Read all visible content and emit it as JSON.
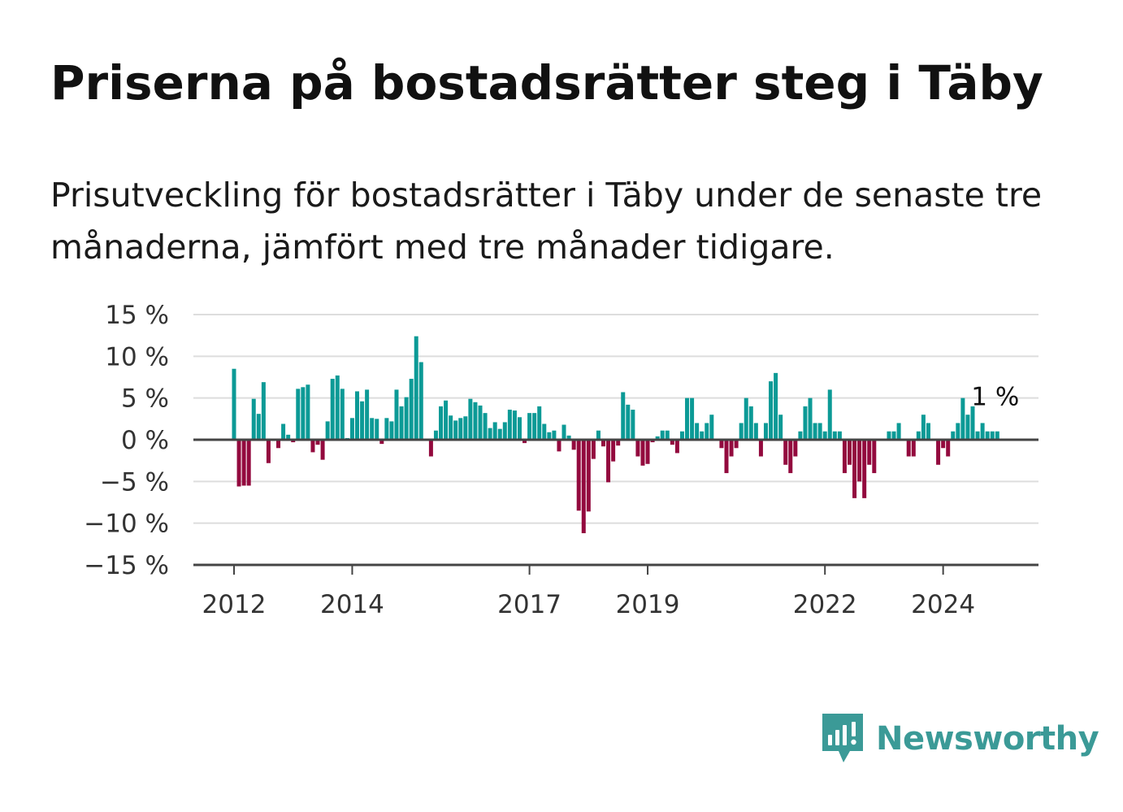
{
  "title": "Priserna på bostadsrätter steg i Täby",
  "subtitle": "Prisutveckling för bostadsrätter i Täby under de senaste tre månaderna, jämfört med tre månader tidigare.",
  "brand": {
    "name": "Newsworthy",
    "icon": "newsworthy-logo-icon"
  },
  "colors": {
    "positive": "#0c9a96",
    "negative": "#930a3e",
    "grid": "#dddddd",
    "axis": "#444444",
    "brand": "#3b9a97"
  },
  "chart_data": {
    "type": "bar",
    "ylim": [
      -15,
      15
    ],
    "yticks": [
      15,
      10,
      5,
      0,
      -5,
      -10,
      -15
    ],
    "ytick_labels": [
      "15 %",
      "10 %",
      "5 %",
      "0 %",
      "−5 %",
      "−10 %",
      "−15 %"
    ],
    "xticks": [
      {
        "label": "2012",
        "index": 0
      },
      {
        "label": "2014",
        "index": 24
      },
      {
        "label": "2017",
        "index": 60
      },
      {
        "label": "2019",
        "index": 84
      },
      {
        "label": "2022",
        "index": 120
      },
      {
        "label": "2024",
        "index": 144
      }
    ],
    "last_label": "1 %",
    "grid": true,
    "values": [
      8.5,
      -5.6,
      -5.5,
      -5.5,
      4.9,
      3.1,
      6.9,
      -2.8,
      0,
      -1,
      1.9,
      0.6,
      -0.3,
      6.1,
      6.3,
      6.6,
      -1.5,
      -0.6,
      -2.4,
      2.2,
      7.3,
      7.7,
      6.1,
      0.2,
      2.6,
      5.8,
      4.6,
      6.0,
      2.6,
      2.5,
      -0.5,
      2.6,
      2.2,
      6.0,
      4.0,
      5.1,
      7.3,
      12.4,
      9.3,
      0,
      -2,
      1.1,
      4.0,
      4.7,
      2.9,
      2.3,
      2.6,
      2.8,
      4.9,
      4.5,
      4.1,
      3.2,
      1.4,
      2.1,
      1.3,
      2.1,
      3.6,
      3.5,
      2.7,
      -0.4,
      3.2,
      3.2,
      4.0,
      1.9,
      0.9,
      1.1,
      -1.4,
      1.8,
      0.5,
      -1.2,
      -8.5,
      -11.2,
      -8.6,
      -2.3,
      1.1,
      -0.8,
      -5.1,
      -2.6,
      -0.7,
      5.7,
      4.2,
      3.6,
      -2,
      -3.1,
      -2.9,
      -0.3,
      0.4,
      1.1,
      1.1,
      -0.6,
      -1.6,
      1.0,
      5.0,
      5.0,
      2.0,
      1.0,
      2.0,
      3.0,
      0,
      -1,
      -4,
      -2,
      -1,
      2.0,
      5.0,
      4.0,
      2.0,
      -2,
      2.0,
      7.0,
      8.0,
      3.0,
      -3,
      -4,
      -2,
      1.0,
      4.0,
      5.0,
      2.0,
      2.0,
      1.0,
      6.0,
      1.0,
      1.0,
      -4,
      -3,
      -7,
      -5,
      -7,
      -3,
      -4,
      0,
      0,
      1.0,
      1.0,
      2.0,
      0,
      -2,
      -2,
      1.0,
      3.0,
      2.0,
      0,
      -3,
      -1,
      -2,
      1.0,
      2.0,
      5.0,
      3.0,
      4.0,
      1.0,
      2.0,
      1.0,
      1.0,
      1.0
    ]
  }
}
